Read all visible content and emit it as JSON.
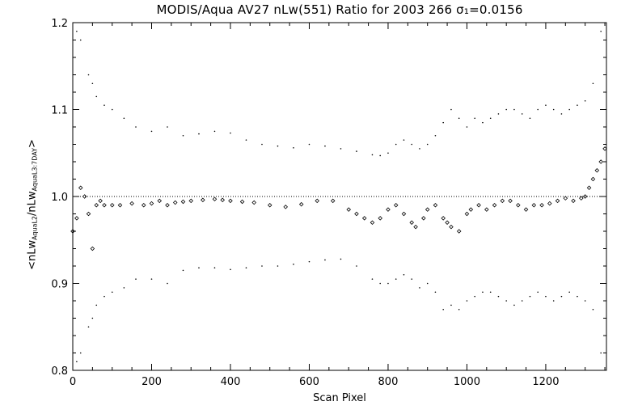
{
  "chart_data": {
    "type": "scatter",
    "title": "MODIS/Aqua AV27 nLw(551) Ratio for 2003 266 σ₁=0.0156",
    "xlabel": "Scan Pixel",
    "ylabel": {
      "open": "<nLw",
      "sub1": "AquaL2",
      "mid": "/nLw",
      "sub2": "AquaL3:7DAY",
      "close": ">"
    },
    "xlim": [
      0,
      1354
    ],
    "ylim": [
      0.8,
      1.2
    ],
    "xticks": [
      0,
      200,
      400,
      600,
      800,
      1000,
      1200
    ],
    "yticks": [
      0.8,
      0.9,
      1.0,
      1.1,
      1.2
    ],
    "ytick_labels": [
      "0.8",
      "0.9",
      "1.0",
      "1.1",
      "1.2"
    ],
    "reference_line": 1.0,
    "grid": false,
    "series": [
      {
        "role": "mean ratio",
        "marker": "diamond",
        "x": [
          0,
          10,
          20,
          30,
          40,
          50,
          60,
          70,
          80,
          100,
          120,
          150,
          180,
          200,
          220,
          240,
          260,
          280,
          300,
          330,
          360,
          380,
          400,
          430,
          460,
          500,
          540,
          580,
          620,
          660,
          700,
          720,
          740,
          760,
          780,
          800,
          820,
          840,
          860,
          870,
          890,
          900,
          920,
          940,
          950,
          960,
          980,
          1000,
          1010,
          1030,
          1050,
          1070,
          1090,
          1110,
          1130,
          1150,
          1170,
          1190,
          1210,
          1230,
          1250,
          1270,
          1290,
          1300,
          1310,
          1320,
          1330,
          1340,
          1350
        ],
        "y": [
          0.96,
          0.975,
          1.01,
          1.0,
          0.98,
          0.94,
          0.99,
          0.995,
          0.99,
          0.99,
          0.99,
          0.992,
          0.99,
          0.992,
          0.995,
          0.99,
          0.993,
          0.994,
          0.995,
          0.996,
          0.997,
          0.996,
          0.995,
          0.994,
          0.993,
          0.99,
          0.988,
          0.991,
          0.995,
          0.995,
          0.985,
          0.98,
          0.975,
          0.97,
          0.975,
          0.985,
          0.99,
          0.98,
          0.97,
          0.965,
          0.975,
          0.985,
          0.99,
          0.975,
          0.97,
          0.965,
          0.96,
          0.98,
          0.985,
          0.99,
          0.985,
          0.99,
          0.995,
          0.995,
          0.99,
          0.985,
          0.99,
          0.99,
          0.992,
          0.995,
          0.998,
          0.995,
          0.998,
          1.0,
          1.01,
          1.02,
          1.03,
          1.04,
          1.055
        ]
      },
      {
        "role": "upper bound",
        "marker": "dot",
        "x": [
          10,
          20,
          40,
          50,
          60,
          80,
          100,
          130,
          160,
          200,
          240,
          280,
          320,
          360,
          400,
          440,
          480,
          520,
          560,
          600,
          640,
          680,
          720,
          760,
          780,
          800,
          820,
          840,
          860,
          880,
          900,
          920,
          940,
          960,
          980,
          1000,
          1020,
          1040,
          1060,
          1080,
          1100,
          1120,
          1140,
          1160,
          1180,
          1200,
          1220,
          1240,
          1260,
          1280,
          1300,
          1320,
          1340
        ],
        "y": [
          1.19,
          1.18,
          1.14,
          1.13,
          1.115,
          1.105,
          1.1,
          1.09,
          1.08,
          1.075,
          1.08,
          1.07,
          1.072,
          1.075,
          1.073,
          1.065,
          1.06,
          1.058,
          1.056,
          1.06,
          1.058,
          1.055,
          1.052,
          1.048,
          1.047,
          1.05,
          1.06,
          1.065,
          1.06,
          1.055,
          1.06,
          1.07,
          1.085,
          1.1,
          1.09,
          1.08,
          1.09,
          1.085,
          1.09,
          1.095,
          1.1,
          1.1,
          1.095,
          1.09,
          1.1,
          1.105,
          1.1,
          1.095,
          1.1,
          1.105,
          1.11,
          1.13,
          1.19
        ]
      },
      {
        "role": "lower bound",
        "marker": "dot",
        "x": [
          10,
          20,
          40,
          50,
          60,
          80,
          100,
          130,
          160,
          200,
          240,
          280,
          320,
          360,
          400,
          440,
          480,
          520,
          560,
          600,
          640,
          680,
          720,
          760,
          780,
          800,
          820,
          840,
          860,
          880,
          900,
          920,
          940,
          960,
          980,
          1000,
          1020,
          1040,
          1060,
          1080,
          1100,
          1120,
          1140,
          1160,
          1180,
          1200,
          1220,
          1240,
          1260,
          1280,
          1300,
          1320,
          1340
        ],
        "y": [
          0.81,
          0.82,
          0.85,
          0.86,
          0.875,
          0.885,
          0.89,
          0.895,
          0.905,
          0.905,
          0.9,
          0.915,
          0.918,
          0.918,
          0.916,
          0.918,
          0.92,
          0.92,
          0.922,
          0.925,
          0.927,
          0.928,
          0.92,
          0.905,
          0.9,
          0.9,
          0.905,
          0.91,
          0.905,
          0.895,
          0.9,
          0.89,
          0.87,
          0.875,
          0.87,
          0.88,
          0.885,
          0.89,
          0.89,
          0.885,
          0.88,
          0.875,
          0.88,
          0.885,
          0.89,
          0.885,
          0.88,
          0.885,
          0.89,
          0.885,
          0.88,
          0.87,
          0.82
        ]
      }
    ]
  }
}
